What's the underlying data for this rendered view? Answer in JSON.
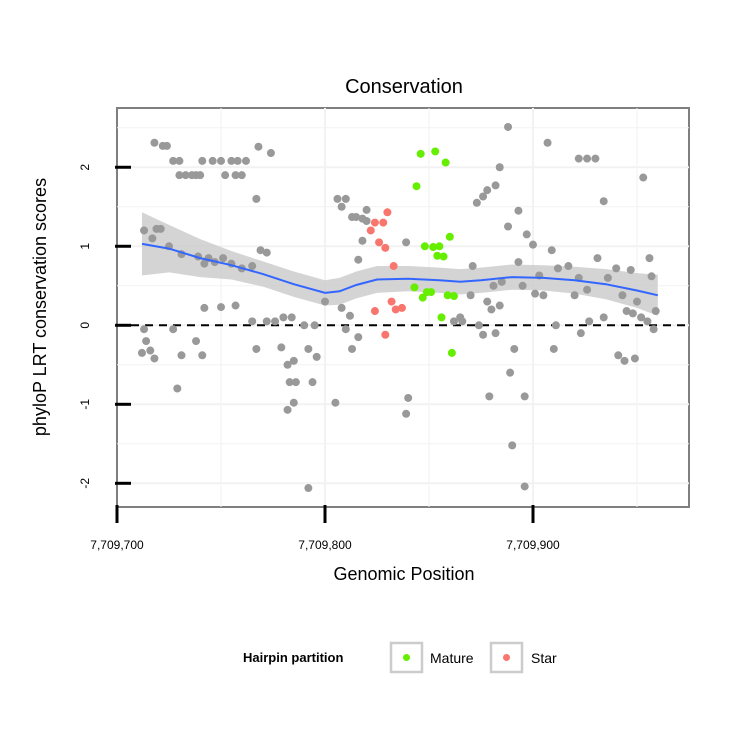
{
  "chart_data": {
    "type": "scatter",
    "title": "Conservation",
    "xlabel": "Genomic Position",
    "ylabel": "phyloP LRT conservation scores",
    "xlim": [
      7709700,
      7709975
    ],
    "ylim": [
      -2.3,
      2.75
    ],
    "x_ticks": [
      7709700,
      7709800,
      7709900
    ],
    "x_tick_labels": [
      "7,709,700",
      "7,709,800",
      "7,709,900"
    ],
    "y_ticks": [
      -2,
      -1,
      0,
      1,
      2
    ],
    "y_tick_labels": [
      "-2",
      "-1",
      "0",
      "1",
      "2"
    ],
    "grid": true,
    "reference_line": {
      "y": 0,
      "style": "dashed"
    },
    "legend": {
      "title": "Hairpin partition",
      "placement": "bottom",
      "entries": [
        {
          "label": "Mature",
          "color": "#66ee00"
        },
        {
          "label": "Star",
          "color": "#f8766d"
        }
      ]
    },
    "colors": {
      "other": "#999999",
      "smooth_line": "#3366ff",
      "ribbon": "#cccccc"
    },
    "series": [
      {
        "name": "Mature",
        "color": "#66ee00",
        "points": [
          [
            7709846,
            2.17
          ],
          [
            7709853,
            2.2
          ],
          [
            7709858,
            2.06
          ],
          [
            7709844,
            1.76
          ],
          [
            7709848,
            1.0
          ],
          [
            7709852,
            0.99
          ],
          [
            7709855,
            1.0
          ],
          [
            7709860,
            1.12
          ],
          [
            7709854,
            0.88
          ],
          [
            7709857,
            0.87
          ],
          [
            7709843,
            0.48
          ],
          [
            7709849,
            0.42
          ],
          [
            7709851,
            0.42
          ],
          [
            7709847,
            0.35
          ],
          [
            7709859,
            0.38
          ],
          [
            7709862,
            0.37
          ],
          [
            7709856,
            0.1
          ],
          [
            7709861,
            -0.35
          ]
        ]
      },
      {
        "name": "Star",
        "color": "#f8766d",
        "points": [
          [
            7709830,
            1.43
          ],
          [
            7709824,
            1.3
          ],
          [
            7709828,
            1.3
          ],
          [
            7709822,
            1.2
          ],
          [
            7709826,
            1.05
          ],
          [
            7709829,
            0.98
          ],
          [
            7709833,
            0.75
          ],
          [
            7709832,
            0.3
          ],
          [
            7709837,
            0.22
          ],
          [
            7709834,
            0.2
          ],
          [
            7709824,
            0.18
          ],
          [
            7709829,
            -0.12
          ]
        ]
      },
      {
        "name": "",
        "color": "#999999",
        "points": [
          [
            7709718,
            2.31
          ],
          [
            7709722,
            2.27
          ],
          [
            7709724,
            2.27
          ],
          [
            7709727,
            2.08
          ],
          [
            7709730,
            2.08
          ],
          [
            7709741,
            2.08
          ],
          [
            7709746,
            2.08
          ],
          [
            7709750,
            2.08
          ],
          [
            7709755,
            2.08
          ],
          [
            7709758,
            2.08
          ],
          [
            7709762,
            2.08
          ],
          [
            7709730,
            1.9
          ],
          [
            7709733,
            1.9
          ],
          [
            7709736,
            1.9
          ],
          [
            7709738,
            1.9
          ],
          [
            7709740,
            1.9
          ],
          [
            7709752,
            1.9
          ],
          [
            7709757,
            1.9
          ],
          [
            7709760,
            1.9
          ],
          [
            7709768,
            2.26
          ],
          [
            7709774,
            2.18
          ],
          [
            7709767,
            1.6
          ],
          [
            7709713,
            1.2
          ],
          [
            7709717,
            1.1
          ],
          [
            7709719,
            1.22
          ],
          [
            7709721,
            1.22
          ],
          [
            7709725,
            1.0
          ],
          [
            7709731,
            0.9
          ],
          [
            7709739,
            0.87
          ],
          [
            7709742,
            0.78
          ],
          [
            7709744,
            0.85
          ],
          [
            7709747,
            0.8
          ],
          [
            7709751,
            0.85
          ],
          [
            7709755,
            0.78
          ],
          [
            7709760,
            0.72
          ],
          [
            7709765,
            0.75
          ],
          [
            7709769,
            0.95
          ],
          [
            7709772,
            0.92
          ],
          [
            7709742,
            0.22
          ],
          [
            7709750,
            0.23
          ],
          [
            7709757,
            0.25
          ],
          [
            7709765,
            0.05
          ],
          [
            7709772,
            0.05
          ],
          [
            7709776,
            0.05
          ],
          [
            7709780,
            0.1
          ],
          [
            7709784,
            0.1
          ],
          [
            7709790,
            0.0
          ],
          [
            7709795,
            0.0
          ],
          [
            7709800,
            0.3
          ],
          [
            7709713,
            -0.05
          ],
          [
            7709714,
            -0.2
          ],
          [
            7709716,
            -0.32
          ],
          [
            7709712,
            -0.35
          ],
          [
            7709718,
            -0.42
          ],
          [
            7709727,
            -0.05
          ],
          [
            7709731,
            -0.38
          ],
          [
            7709738,
            -0.2
          ],
          [
            7709741,
            -0.38
          ],
          [
            7709729,
            -0.8
          ],
          [
            7709767,
            -0.3
          ],
          [
            7709779,
            -0.28
          ],
          [
            7709782,
            -0.5
          ],
          [
            7709785,
            -0.45
          ],
          [
            7709792,
            -0.3
          ],
          [
            7709796,
            -0.4
          ],
          [
            7709783,
            -0.72
          ],
          [
            7709786,
            -0.72
          ],
          [
            7709794,
            -0.72
          ],
          [
            7709782,
            -1.07
          ],
          [
            7709785,
            -0.98
          ],
          [
            7709792,
            -2.06
          ],
          [
            7709805,
            -0.98
          ],
          [
            7709806,
            1.6
          ],
          [
            7709810,
            1.6
          ],
          [
            7709813,
            1.37
          ],
          [
            7709815,
            1.37
          ],
          [
            7709818,
            1.35
          ],
          [
            7709820,
            1.32
          ],
          [
            7709808,
            1.5
          ],
          [
            7709820,
            1.46
          ],
          [
            7709818,
            1.07
          ],
          [
            7709816,
            0.83
          ],
          [
            7709808,
            0.22
          ],
          [
            7709812,
            0.12
          ],
          [
            7709810,
            -0.05
          ],
          [
            7709813,
            -0.3
          ],
          [
            7709816,
            -0.15
          ],
          [
            7709839,
            1.05
          ],
          [
            7709840,
            -0.92
          ],
          [
            7709839,
            -1.12
          ],
          [
            7709870,
            0.38
          ],
          [
            7709866,
            0.05
          ],
          [
            7709871,
            0.75
          ],
          [
            7709878,
            0.3
          ],
          [
            7709884,
            2.0
          ],
          [
            7709888,
            2.51
          ],
          [
            7709878,
            1.71
          ],
          [
            7709876,
            1.63
          ],
          [
            7709882,
            1.77
          ],
          [
            7709873,
            1.55
          ],
          [
            7709881,
            0.5
          ],
          [
            7709884,
            0.25
          ],
          [
            7709888,
            1.25
          ],
          [
            7709880,
            0.2
          ],
          [
            7709874,
            0.0
          ],
          [
            7709876,
            -0.12
          ],
          [
            7709882,
            -0.1
          ],
          [
            7709889,
            -0.6
          ],
          [
            7709879,
            -0.9
          ],
          [
            7709891,
            -0.3
          ],
          [
            7709893,
            1.45
          ],
          [
            7709893,
            0.8
          ],
          [
            7709895,
            0.5
          ],
          [
            7709897,
            1.15
          ],
          [
            7709900,
            1.02
          ],
          [
            7709890,
            -1.52
          ],
          [
            7709896,
            -2.04
          ],
          [
            7709896,
            -0.9
          ],
          [
            7709907,
            2.31
          ],
          [
            7709909,
            0.95
          ],
          [
            7709912,
            0.72
          ],
          [
            7709905,
            0.38
          ],
          [
            7709911,
            0.0
          ],
          [
            7709910,
            -0.3
          ],
          [
            7709917,
            0.75
          ],
          [
            7709922,
            0.6
          ],
          [
            7709926,
            0.45
          ],
          [
            7709922,
            2.11
          ],
          [
            7709926,
            2.11
          ],
          [
            7709930,
            2.11
          ],
          [
            7709934,
            1.57
          ],
          [
            7709931,
            0.85
          ],
          [
            7709936,
            0.6
          ],
          [
            7709940,
            0.72
          ],
          [
            7709943,
            0.38
          ],
          [
            7709947,
            0.7
          ],
          [
            7709950,
            0.3
          ],
          [
            7709953,
            1.87
          ],
          [
            7709956,
            0.85
          ],
          [
            7709957,
            0.62
          ],
          [
            7709945,
            0.18
          ],
          [
            7709948,
            0.15
          ],
          [
            7709952,
            0.1
          ],
          [
            7709955,
            0.05
          ],
          [
            7709941,
            -0.38
          ],
          [
            7709944,
            -0.45
          ],
          [
            7709949,
            -0.42
          ],
          [
            7709958,
            -0.05
          ],
          [
            7709959,
            0.18
          ],
          [
            7709934,
            0.1
          ],
          [
            7709927,
            0.05
          ],
          [
            7709923,
            -0.1
          ],
          [
            7709920,
            0.38
          ],
          [
            7709903,
            0.63
          ],
          [
            7709901,
            0.4
          ],
          [
            7709885,
            0.55
          ],
          [
            7709862,
            0.05
          ],
          [
            7709865,
            0.1
          ]
        ]
      }
    ],
    "smooth_fit": [
      [
        7709712,
        1.03
      ],
      [
        7709725,
        0.97
      ],
      [
        7709740,
        0.85
      ],
      [
        7709755,
        0.76
      ],
      [
        7709770,
        0.65
      ],
      [
        7709785,
        0.52
      ],
      [
        7709800,
        0.41
      ],
      [
        7709807,
        0.43
      ],
      [
        7709815,
        0.51
      ],
      [
        7709825,
        0.58
      ],
      [
        7709840,
        0.59
      ],
      [
        7709855,
        0.57
      ],
      [
        7709865,
        0.55
      ],
      [
        7709875,
        0.57
      ],
      [
        7709890,
        0.61
      ],
      [
        7709905,
        0.6
      ],
      [
        7709920,
        0.57
      ],
      [
        7709935,
        0.52
      ],
      [
        7709950,
        0.44
      ],
      [
        7709960,
        0.38
      ]
    ],
    "smooth_band_halfwidth": [
      0.4,
      0.3,
      0.24,
      0.18,
      0.16,
      0.16,
      0.16,
      0.17,
      0.17,
      0.17,
      0.16,
      0.16,
      0.16,
      0.16,
      0.16,
      0.16,
      0.17,
      0.19,
      0.22,
      0.26
    ]
  }
}
